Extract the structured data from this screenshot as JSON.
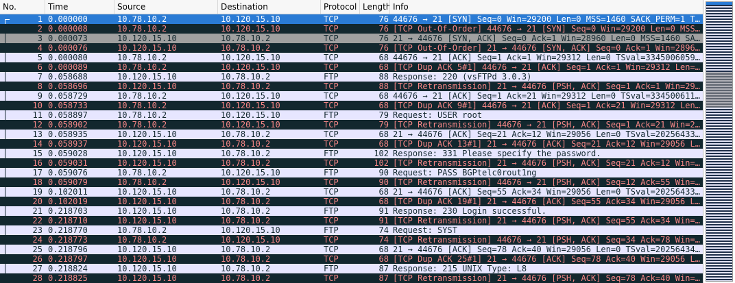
{
  "columns": {
    "no": "No.",
    "time": "Time",
    "source": "Source",
    "destination": "Destination",
    "protocol": "Protocol",
    "length": "Length",
    "info": "Info"
  },
  "colors": {
    "normal_bg": "#e7e6ff",
    "normal_fg": "#12272e",
    "bad_bg": "#12272e",
    "bad_fg": "#f78787",
    "selected_bg": "#2a7bd5",
    "gray_bg": "#a0a0a0"
  },
  "packets": [
    {
      "no": "1",
      "time": "0.000000",
      "src": "10.78.10.2",
      "dst": "10.120.15.10",
      "proto": "TCP",
      "len": "76",
      "info": "44676 → 21 [SYN] Seq=0 Win=29200 Len=0 MSS=1460 SACK_PERM=1 T…",
      "style": "sel"
    },
    {
      "no": "2",
      "time": "0.000008",
      "src": "10.78.10.2",
      "dst": "10.120.15.10",
      "proto": "TCP",
      "len": "76",
      "info": "[TCP Out-Of-Order] 44676 → 21 [SYN] Seq=0 Win=29200 Len=0 MSS…",
      "style": "bad"
    },
    {
      "no": "3",
      "time": "0.000073",
      "src": "10.120.15.10",
      "dst": "10.78.10.2",
      "proto": "TCP",
      "len": "76",
      "info": "21 → 44676 [SYN, ACK] Seq=0 Ack=1 Win=28960 Len=0 MSS=1460 SA…",
      "style": "gray"
    },
    {
      "no": "4",
      "time": "0.000076",
      "src": "10.120.15.10",
      "dst": "10.78.10.2",
      "proto": "TCP",
      "len": "76",
      "info": "[TCP Out-Of-Order] 21 → 44676 [SYN, ACK] Seq=0 Ack=1 Win=2896…",
      "style": "bad"
    },
    {
      "no": "5",
      "time": "0.000080",
      "src": "10.78.10.2",
      "dst": "10.120.15.10",
      "proto": "TCP",
      "len": "68",
      "info": "44676 → 21 [ACK] Seq=1 Ack=1 Win=29312 Len=0 TSval=3345006059…",
      "style": "tcp"
    },
    {
      "no": "6",
      "time": "0.000089",
      "src": "10.78.10.2",
      "dst": "10.120.15.10",
      "proto": "TCP",
      "len": "68",
      "info": "[TCP Dup ACK 5#1] 44676 → 21 [ACK] Seq=1 Ack=1 Win=29312 Len=…",
      "style": "bad"
    },
    {
      "no": "7",
      "time": "0.058688",
      "src": "10.120.15.10",
      "dst": "10.78.10.2",
      "proto": "FTP",
      "len": "88",
      "info": "Response: 220 (vsFTPd 3.0.3)",
      "style": "ftp"
    },
    {
      "no": "8",
      "time": "0.058696",
      "src": "10.120.15.10",
      "dst": "10.78.10.2",
      "proto": "TCP",
      "len": "88",
      "info": "[TCP Retransmission] 21 → 44676 [PSH, ACK] Seq=1 Ack=1 Win=29…",
      "style": "bad"
    },
    {
      "no": "9",
      "time": "0.058729",
      "src": "10.78.10.2",
      "dst": "10.120.15.10",
      "proto": "TCP",
      "len": "68",
      "info": "44676 → 21 [ACK] Seq=1 Ack=21 Win=29312 Len=0 TSval=334500611…",
      "style": "tcp"
    },
    {
      "no": "10",
      "time": "0.058733",
      "src": "10.78.10.2",
      "dst": "10.120.15.10",
      "proto": "TCP",
      "len": "68",
      "info": "[TCP Dup ACK 9#1] 44676 → 21 [ACK] Seq=1 Ack=21 Win=29312 Len…",
      "style": "bad"
    },
    {
      "no": "11",
      "time": "0.058897",
      "src": "10.78.10.2",
      "dst": "10.120.15.10",
      "proto": "FTP",
      "len": "79",
      "info": "Request: USER root",
      "style": "ftp"
    },
    {
      "no": "12",
      "time": "0.058902",
      "src": "10.78.10.2",
      "dst": "10.120.15.10",
      "proto": "TCP",
      "len": "79",
      "info": "[TCP Retransmission] 44676 → 21 [PSH, ACK] Seq=1 Ack=21 Win=2…",
      "style": "bad"
    },
    {
      "no": "13",
      "time": "0.058935",
      "src": "10.120.15.10",
      "dst": "10.78.10.2",
      "proto": "TCP",
      "len": "68",
      "info": "21 → 44676 [ACK] Seq=21 Ack=12 Win=29056 Len=0 TSval=20256433…",
      "style": "tcp"
    },
    {
      "no": "14",
      "time": "0.058937",
      "src": "10.120.15.10",
      "dst": "10.78.10.2",
      "proto": "TCP",
      "len": "68",
      "info": "[TCP Dup ACK 13#1] 21 → 44676 [ACK] Seq=21 Ack=12 Win=29056 L…",
      "style": "bad"
    },
    {
      "no": "15",
      "time": "0.059028",
      "src": "10.120.15.10",
      "dst": "10.78.10.2",
      "proto": "FTP",
      "len": "102",
      "info": "Response: 331 Please specify the password.",
      "style": "ftp"
    },
    {
      "no": "16",
      "time": "0.059031",
      "src": "10.120.15.10",
      "dst": "10.78.10.2",
      "proto": "TCP",
      "len": "102",
      "info": "[TCP Retransmission] 21 → 44676 [PSH, ACK] Seq=21 Ack=12 Win=…",
      "style": "bad"
    },
    {
      "no": "17",
      "time": "0.059076",
      "src": "10.78.10.2",
      "dst": "10.120.15.10",
      "proto": "FTP",
      "len": "90",
      "info": "Request: PASS BGPtelc0rout1ng",
      "style": "ftp"
    },
    {
      "no": "18",
      "time": "0.059079",
      "src": "10.78.10.2",
      "dst": "10.120.15.10",
      "proto": "TCP",
      "len": "90",
      "info": "[TCP Retransmission] 44676 → 21 [PSH, ACK] Seq=12 Ack=55 Win=…",
      "style": "bad"
    },
    {
      "no": "19",
      "time": "0.102011",
      "src": "10.120.15.10",
      "dst": "10.78.10.2",
      "proto": "TCP",
      "len": "68",
      "info": "21 → 44676 [ACK] Seq=55 Ack=34 Win=29056 Len=0 TSval=20256433…",
      "style": "tcp"
    },
    {
      "no": "20",
      "time": "0.102019",
      "src": "10.120.15.10",
      "dst": "10.78.10.2",
      "proto": "TCP",
      "len": "68",
      "info": "[TCP Dup ACK 19#1] 21 → 44676 [ACK] Seq=55 Ack=34 Win=29056 L…",
      "style": "bad"
    },
    {
      "no": "21",
      "time": "0.218703",
      "src": "10.120.15.10",
      "dst": "10.78.10.2",
      "proto": "FTP",
      "len": "91",
      "info": "Response: 230 Login successful.",
      "style": "ftp"
    },
    {
      "no": "22",
      "time": "0.218710",
      "src": "10.120.15.10",
      "dst": "10.78.10.2",
      "proto": "TCP",
      "len": "91",
      "info": "[TCP Retransmission] 21 → 44676 [PSH, ACK] Seq=55 Ack=34 Win=…",
      "style": "bad"
    },
    {
      "no": "23",
      "time": "0.218770",
      "src": "10.78.10.2",
      "dst": "10.120.15.10",
      "proto": "FTP",
      "len": "74",
      "info": "Request: SYST",
      "style": "ftp"
    },
    {
      "no": "24",
      "time": "0.218773",
      "src": "10.78.10.2",
      "dst": "10.120.15.10",
      "proto": "TCP",
      "len": "74",
      "info": "[TCP Retransmission] 44676 → 21 [PSH, ACK] Seq=34 Ack=78 Win=…",
      "style": "bad"
    },
    {
      "no": "25",
      "time": "0.218796",
      "src": "10.120.15.10",
      "dst": "10.78.10.2",
      "proto": "TCP",
      "len": "68",
      "info": "21 → 44676 [ACK] Seq=78 Ack=40 Win=29056 Len=0 TSval=20256434…",
      "style": "tcp"
    },
    {
      "no": "26",
      "time": "0.218797",
      "src": "10.120.15.10",
      "dst": "10.78.10.2",
      "proto": "TCP",
      "len": "68",
      "info": "[TCP Dup ACK 25#1] 21 → 44676 [ACK] Seq=78 Ack=40 Win=29056 L…",
      "style": "bad"
    },
    {
      "no": "27",
      "time": "0.218824",
      "src": "10.120.15.10",
      "dst": "10.78.10.2",
      "proto": "FTP",
      "len": "87",
      "info": "Response: 215 UNIX Type: L8",
      "style": "ftp"
    },
    {
      "no": "28",
      "time": "0.218825",
      "src": "10.120.15.10",
      "dst": "10.78.10.2",
      "proto": "TCP",
      "len": "87",
      "info": "[TCP Retransmission] 21 → 44676 [PSH, ACK] Seq=78 Ack=40 Win=…",
      "style": "bad"
    }
  ]
}
